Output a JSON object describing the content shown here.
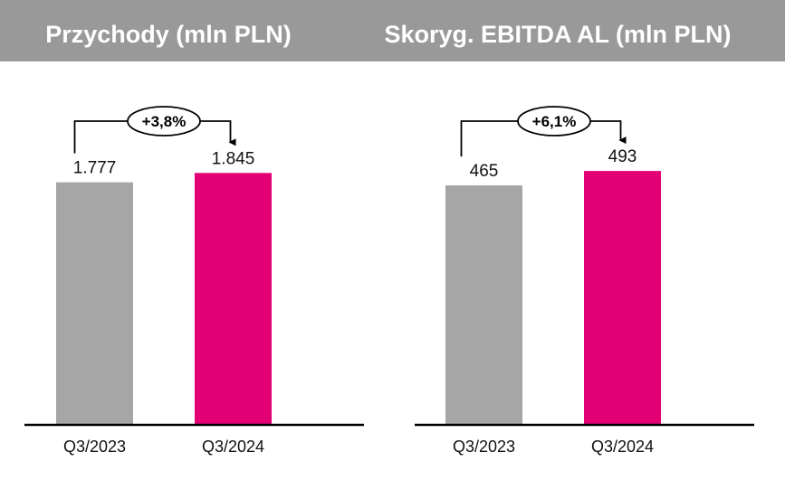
{
  "colors": {
    "header_bg": "#999999",
    "bar_prev": "#a6a6a6",
    "bar_curr": "#e20074",
    "text": "#111111"
  },
  "chart_data": [
    {
      "type": "bar",
      "title": "Przychody (mln PLN)",
      "categories": [
        "Q3/2023",
        "Q3/2024"
      ],
      "values": [
        1777,
        1845
      ],
      "value_labels": [
        "1.777",
        "1.845"
      ],
      "growth_label": "+3,8%",
      "ylim": [
        0,
        1920
      ],
      "xlabel": "",
      "ylabel": "",
      "grid": false
    },
    {
      "type": "bar",
      "title": "Skoryg. EBITDA AL (mln PLN)",
      "categories": [
        "Q3/2023",
        "Q3/2024"
      ],
      "values": [
        465,
        493
      ],
      "value_labels": [
        "465",
        "493"
      ],
      "growth_label": "+6,1%",
      "ylim": [
        0,
        509
      ],
      "xlabel": "",
      "ylabel": "",
      "grid": false
    }
  ]
}
